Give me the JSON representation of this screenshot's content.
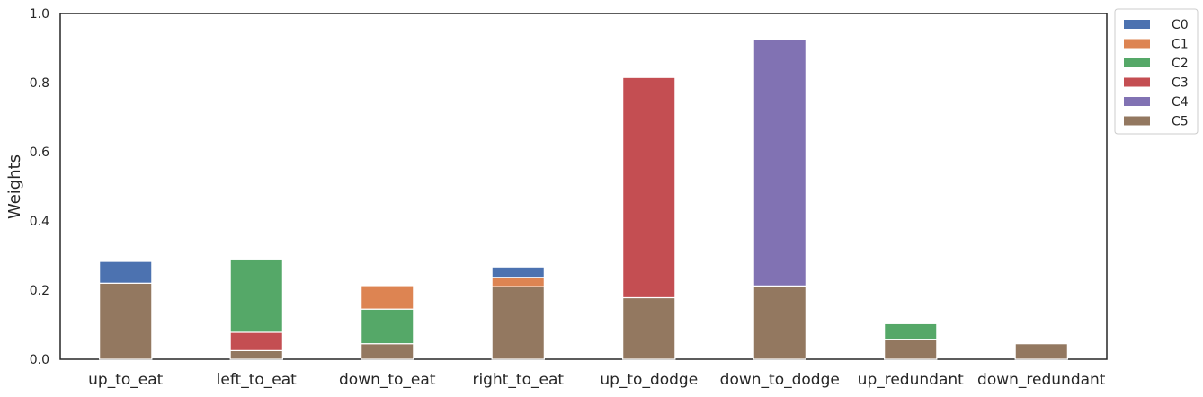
{
  "chart_data": {
    "type": "bar",
    "stacked": true,
    "title": "",
    "xlabel": "",
    "ylabel": "Weights",
    "ylim": [
      0,
      1.0
    ],
    "yticks": [
      "0.0",
      "0.2",
      "0.4",
      "0.6",
      "0.8",
      "1.0"
    ],
    "grid": false,
    "legend_position": "outside top-right",
    "categories": [
      "up_to_eat",
      "left_to_eat",
      "down_to_eat",
      "right_to_eat",
      "up_to_dodge",
      "down_to_dodge",
      "up_redundant",
      "down_redundant"
    ],
    "series": [
      {
        "name": "C5",
        "color": "#937860",
        "values": [
          0.22,
          0.025,
          0.045,
          0.21,
          0.178,
          0.212,
          0.058,
          0.045
        ]
      },
      {
        "name": "C4",
        "color": "#8172b3",
        "values": [
          0,
          0,
          0,
          0,
          0,
          0.713,
          0,
          0
        ]
      },
      {
        "name": "C3",
        "color": "#c44e52",
        "values": [
          0,
          0.053,
          0,
          0,
          0.637,
          0,
          0,
          0
        ]
      },
      {
        "name": "C2",
        "color": "#55a868",
        "values": [
          0,
          0.212,
          0.1,
          0,
          0,
          0,
          0.045,
          0
        ]
      },
      {
        "name": "C1",
        "color": "#dd8452",
        "values": [
          0,
          0,
          0.068,
          0.027,
          0,
          0,
          0,
          0
        ]
      },
      {
        "name": "C0",
        "color": "#4c72b0",
        "values": [
          0.063,
          0,
          0,
          0.03,
          0,
          0,
          0,
          0
        ]
      }
    ],
    "legend_order": [
      "C0",
      "C1",
      "C2",
      "C3",
      "C4",
      "C5"
    ]
  }
}
